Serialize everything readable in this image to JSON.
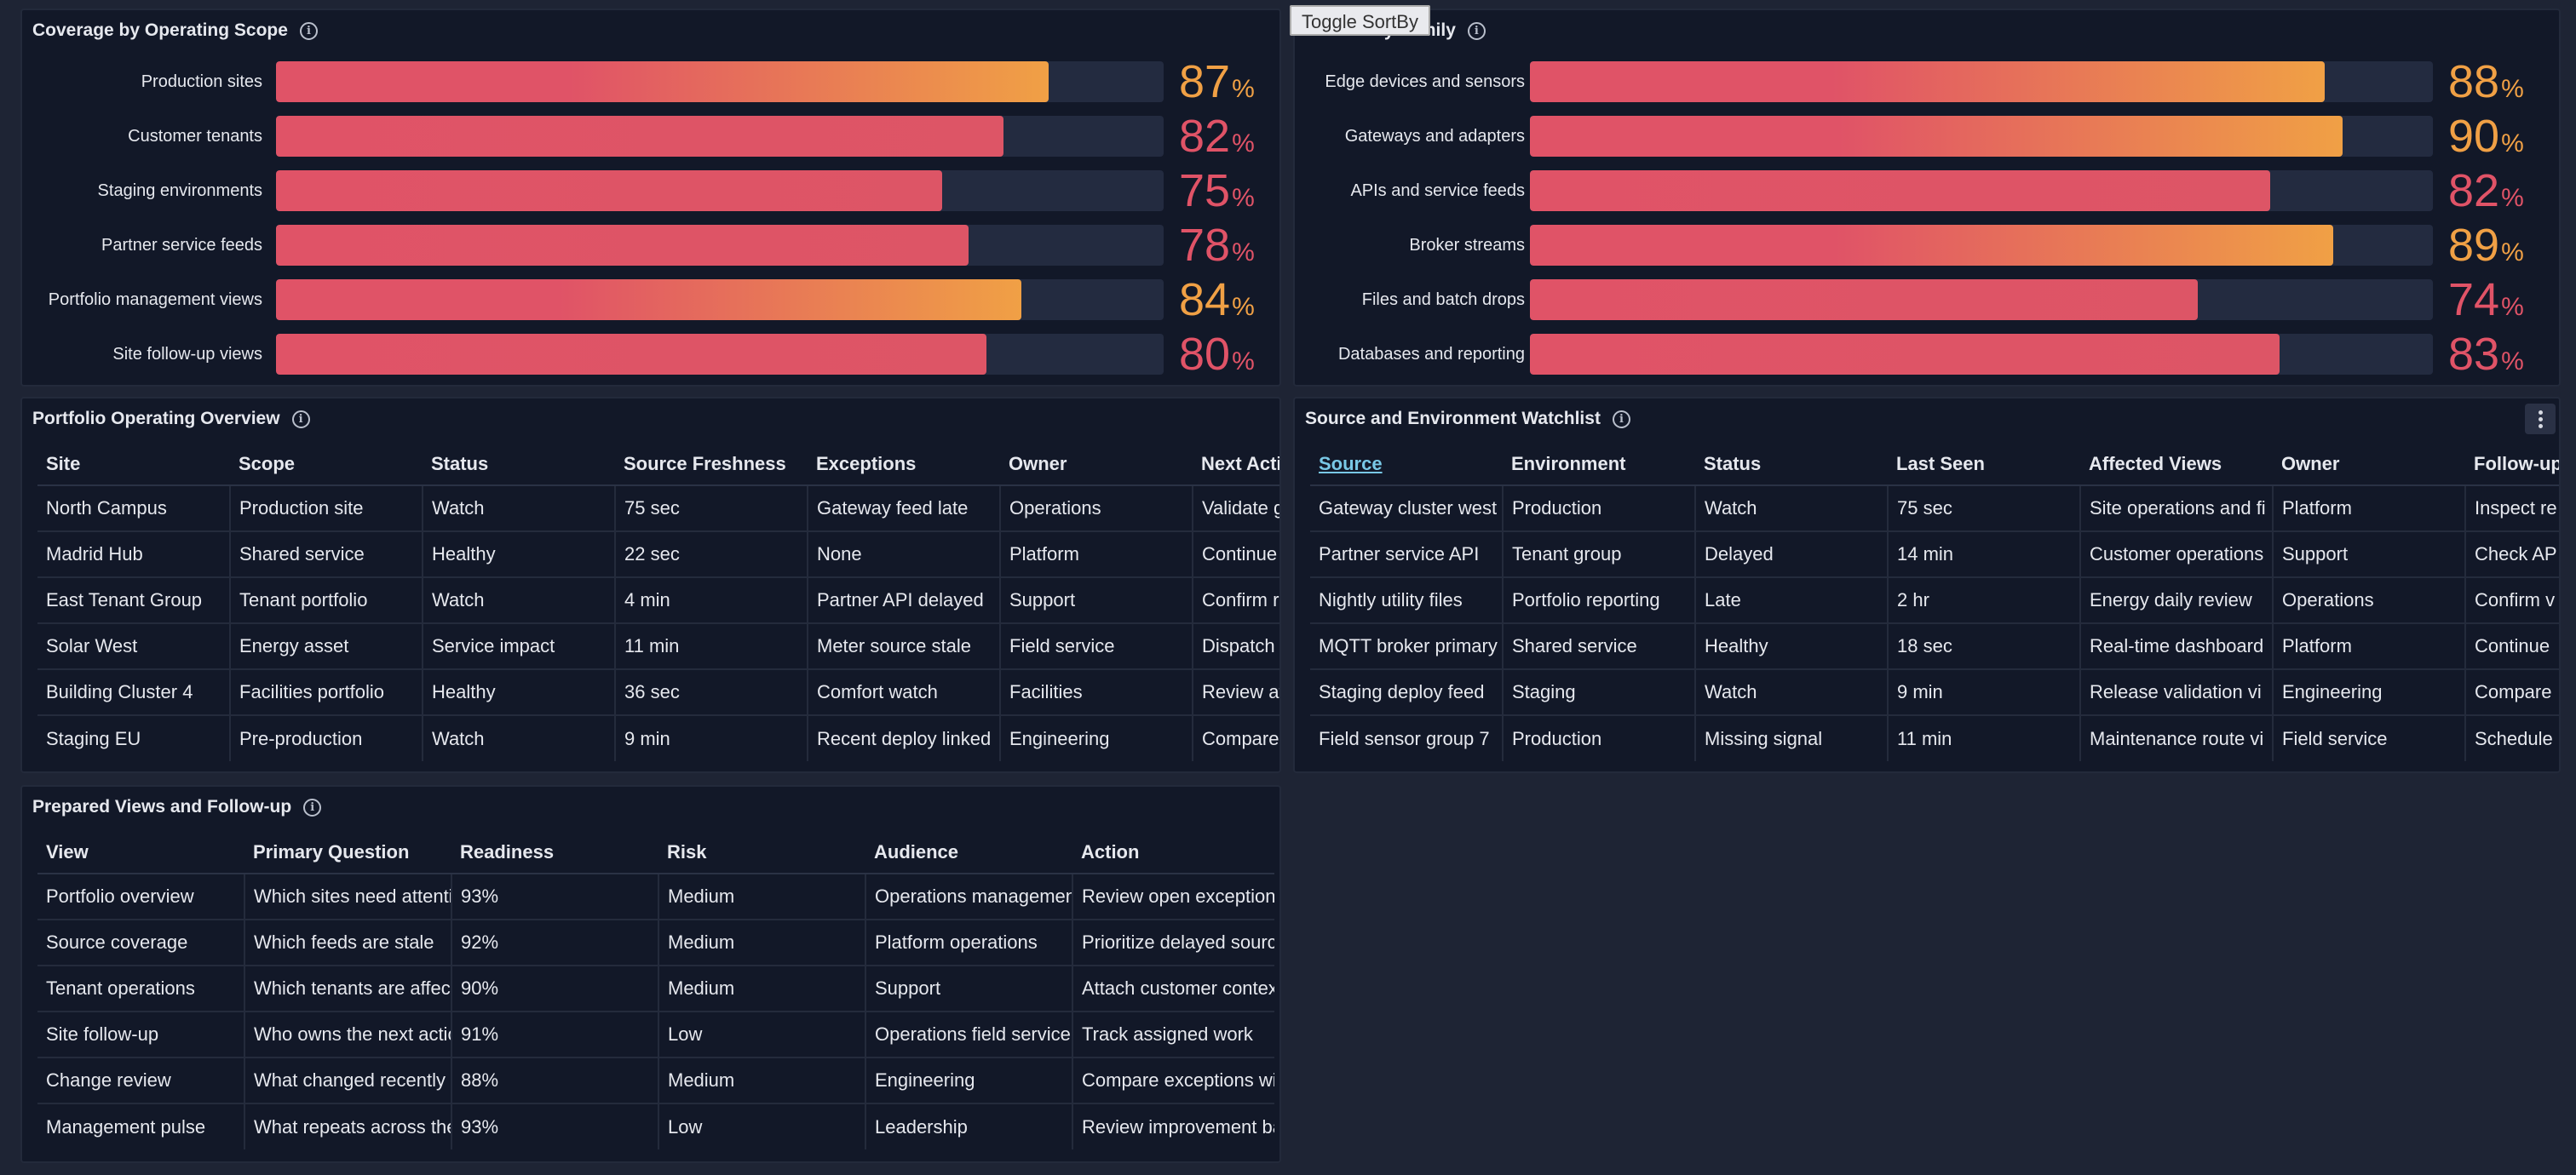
{
  "tooltip": "Toggle SortBy",
  "colors": {
    "red": "#e05367",
    "orange": "#f0a045"
  },
  "scope_panel": {
    "title": "Coverage by Operating Scope",
    "unit": "%",
    "items": [
      {
        "label": "Production sites",
        "value": "87",
        "fraction": 0.87,
        "tone": "orange"
      },
      {
        "label": "Customer tenants",
        "value": "82",
        "fraction": 0.82,
        "tone": "red"
      },
      {
        "label": "Staging environments",
        "value": "75",
        "fraction": 0.75,
        "tone": "red"
      },
      {
        "label": "Partner service feeds",
        "value": "78",
        "fraction": 0.78,
        "tone": "red"
      },
      {
        "label": "Portfolio management views",
        "value": "84",
        "fraction": 0.84,
        "tone": "orange"
      },
      {
        "label": "Site follow-up views",
        "value": "80",
        "fraction": 0.8,
        "tone": "red"
      }
    ]
  },
  "family_panel": {
    "title": "by Family",
    "unit": "%",
    "items": [
      {
        "label": "Edge devices and sensors",
        "value": "88",
        "fraction": 0.88,
        "tone": "orange"
      },
      {
        "label": "Gateways and adapters",
        "value": "90",
        "fraction": 0.9,
        "tone": "orange"
      },
      {
        "label": "APIs and service feeds",
        "value": "82",
        "fraction": 0.82,
        "tone": "red"
      },
      {
        "label": "Broker streams",
        "value": "89",
        "fraction": 0.89,
        "tone": "orange"
      },
      {
        "label": "Files and batch drops",
        "value": "74",
        "fraction": 0.74,
        "tone": "red"
      },
      {
        "label": "Databases and reporting",
        "value": "83",
        "fraction": 0.83,
        "tone": "red"
      }
    ]
  },
  "portfolio": {
    "title": "Portfolio Operating Overview",
    "columns": [
      "Site",
      "Scope",
      "Status",
      "Source Freshness",
      "Exceptions",
      "Owner",
      "Next Action"
    ],
    "rows": [
      [
        "North Campus",
        "Production site",
        "Watch",
        "75 sec",
        "Gateway feed late",
        "Operations",
        "Validate gateway"
      ],
      [
        "Madrid Hub",
        "Shared service",
        "Healthy",
        "22 sec",
        "None",
        "Platform",
        "Continue"
      ],
      [
        "East Tenant Group",
        "Tenant portfolio",
        "Watch",
        "4 min",
        "Partner API delayed",
        "Support",
        "Confirm replay"
      ],
      [
        "Solar West",
        "Energy asset",
        "Service impact",
        "11 min",
        "Meter source stale",
        "Field service",
        "Dispatch"
      ],
      [
        "Building Cluster 4",
        "Facilities portfolio",
        "Healthy",
        "36 sec",
        "Comfort watch",
        "Facilities",
        "Review after"
      ],
      [
        "Staging EU",
        "Pre-production",
        "Watch",
        "9 min",
        "Recent deploy linked",
        "Engineering",
        "Compare"
      ]
    ]
  },
  "watchlist": {
    "title": "Source and Environment Watchlist",
    "columns": [
      "Source",
      "Environment",
      "Status",
      "Last Seen",
      "Affected Views",
      "Owner",
      "Follow-up"
    ],
    "rows": [
      [
        "Gateway cluster west",
        "Production",
        "Watch",
        "75 sec",
        "Site operations and fi",
        "Platform",
        "Inspect re"
      ],
      [
        "Partner service API",
        "Tenant group",
        "Delayed",
        "14 min",
        "Customer operations",
        "Support",
        "Check AP"
      ],
      [
        "Nightly utility files",
        "Portfolio reporting",
        "Late",
        "2 hr",
        "Energy daily review",
        "Operations",
        "Confirm v"
      ],
      [
        "MQTT broker primary",
        "Shared service",
        "Healthy",
        "18 sec",
        "Real-time dashboard",
        "Platform",
        "Continue"
      ],
      [
        "Staging deploy feed",
        "Staging",
        "Watch",
        "9 min",
        "Release validation vi",
        "Engineering",
        "Compare"
      ],
      [
        "Field sensor group 7",
        "Production",
        "Missing signal",
        "11 min",
        "Maintenance route vi",
        "Field service",
        "Schedule"
      ]
    ]
  },
  "views": {
    "title": "Prepared Views and Follow-up",
    "columns": [
      "View",
      "Primary Question",
      "Readiness",
      "Risk",
      "Audience",
      "Action"
    ],
    "rows": [
      [
        "Portfolio overview",
        "Which sites need attention",
        "93%",
        "Medium",
        "Operations management",
        "Review open exceptions"
      ],
      [
        "Source coverage",
        "Which feeds are stale",
        "92%",
        "Medium",
        "Platform operations",
        "Prioritize delayed sources"
      ],
      [
        "Tenant operations",
        "Which tenants are affected",
        "90%",
        "Medium",
        "Support",
        "Attach customer context"
      ],
      [
        "Site follow-up",
        "Who owns the next action",
        "91%",
        "Low",
        "Operations field service",
        "Track assigned work"
      ],
      [
        "Change review",
        "What changed recently",
        "88%",
        "Medium",
        "Engineering",
        "Compare exceptions with"
      ],
      [
        "Management pulse",
        "What repeats across the",
        "93%",
        "Low",
        "Leadership",
        "Review improvement backlog"
      ]
    ]
  }
}
